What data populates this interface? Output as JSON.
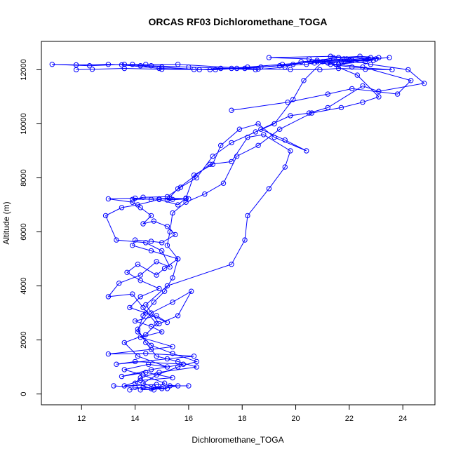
{
  "chart_data": {
    "type": "line",
    "title": "ORCAS RF03 Dichloromethane_TOGA",
    "xlabel": "Dichloromethane_TOGA",
    "ylabel": "Altitude (m)",
    "xlim": [
      10.5,
      25.2
    ],
    "ylim": [
      -400,
      13050
    ],
    "x_ticks": [
      12,
      14,
      16,
      18,
      20,
      22,
      24
    ],
    "y_ticks": [
      0,
      2000,
      4000,
      6000,
      8000,
      10000,
      12000
    ],
    "grid": false,
    "legend": "none",
    "series_color": "#0000ff",
    "series": [
      {
        "points": [
          [
            13.8,
            150
          ],
          [
            14.3,
            250
          ],
          [
            15.0,
            200
          ],
          [
            15.6,
            300
          ],
          [
            14.8,
            350
          ],
          [
            13.6,
            300
          ],
          [
            14.2,
            500
          ],
          [
            15.4,
            600
          ],
          [
            14.4,
            800
          ],
          [
            13.5,
            650
          ],
          [
            14.6,
            900
          ],
          [
            15.8,
            1100
          ],
          [
            14.0,
            1200
          ],
          [
            13.3,
            1100
          ],
          [
            15.2,
            1300
          ],
          [
            16.2,
            1400
          ],
          [
            14.4,
            1500
          ],
          [
            13.0,
            1480
          ],
          [
            14.6,
            1650
          ],
          [
            15.4,
            1750
          ],
          [
            14.2,
            2100
          ],
          [
            15.0,
            2300
          ],
          [
            14.6,
            2500
          ],
          [
            14.0,
            2700
          ],
          [
            14.8,
            2900
          ],
          [
            15.2,
            2650
          ],
          [
            14.4,
            3000
          ],
          [
            13.8,
            3200
          ],
          [
            14.2,
            3600
          ],
          [
            14.9,
            3900
          ],
          [
            14.2,
            4200
          ],
          [
            13.7,
            4500
          ],
          [
            14.1,
            4800
          ],
          [
            14.8,
            4400
          ],
          [
            15.1,
            4650
          ],
          [
            15.6,
            5000
          ],
          [
            14.6,
            5300
          ],
          [
            13.9,
            5500
          ],
          [
            14.0,
            5700
          ],
          [
            14.6,
            5650
          ],
          [
            15.0,
            5600
          ],
          [
            15.5,
            5900
          ],
          [
            15.2,
            6200
          ],
          [
            14.7,
            6400
          ],
          [
            14.3,
            6300
          ],
          [
            14.6,
            6600
          ],
          [
            14.2,
            6900
          ],
          [
            13.9,
            7100
          ],
          [
            13.0,
            7220
          ],
          [
            14.0,
            7250
          ],
          [
            14.6,
            7200
          ],
          [
            15.3,
            7250
          ],
          [
            16.0,
            7220
          ],
          [
            15.2,
            7180
          ],
          [
            15.6,
            7600
          ],
          [
            16.8,
            8500
          ],
          [
            17.6,
            8600
          ],
          [
            18.2,
            9500
          ],
          [
            18.8,
            9600
          ],
          [
            19.8,
            9000
          ],
          [
            19.6,
            8400
          ],
          [
            19.0,
            7600
          ],
          [
            18.2,
            6600
          ],
          [
            18.1,
            5700
          ],
          [
            17.6,
            4800
          ],
          [
            15.2,
            4000
          ],
          [
            14.4,
            3300
          ],
          [
            14.9,
            2600
          ],
          [
            15.6,
            2900
          ],
          [
            16.1,
            3800
          ],
          [
            15.4,
            3400
          ],
          [
            14.6,
            3000
          ],
          [
            14.1,
            2400
          ],
          [
            14.4,
            1900
          ],
          [
            14.8,
            1400
          ],
          [
            15.6,
            1200
          ],
          [
            16.3,
            1000
          ],
          [
            14.9,
            800
          ],
          [
            14.2,
            600
          ],
          [
            14.0,
            400
          ],
          [
            14.6,
            200
          ],
          [
            15.3,
            300
          ],
          [
            16.0,
            300
          ]
        ]
      },
      {
        "points": [
          [
            13.2,
            300
          ],
          [
            14.0,
            250
          ],
          [
            14.7,
            150
          ],
          [
            15.1,
            400
          ],
          [
            14.3,
            700
          ],
          [
            13.6,
            900
          ],
          [
            14.5,
            1100
          ],
          [
            15.2,
            1000
          ],
          [
            14.1,
            1400
          ],
          [
            13.6,
            1900
          ],
          [
            14.4,
            2200
          ],
          [
            14.8,
            2600
          ],
          [
            14.3,
            3200
          ],
          [
            13.9,
            3700
          ],
          [
            13.0,
            3600
          ],
          [
            13.4,
            4100
          ],
          [
            14.2,
            4400
          ],
          [
            14.8,
            4900
          ],
          [
            15.3,
            4700
          ],
          [
            15.0,
            5300
          ],
          [
            14.4,
            5600
          ],
          [
            13.3,
            5700
          ],
          [
            12.9,
            6600
          ],
          [
            13.5,
            6900
          ],
          [
            14.1,
            7000
          ],
          [
            14.9,
            7200
          ],
          [
            15.6,
            7000
          ],
          [
            15.9,
            7250
          ],
          [
            16.2,
            8100
          ],
          [
            16.9,
            8500
          ],
          [
            17.2,
            9200
          ],
          [
            17.9,
            9800
          ],
          [
            18.6,
            10000
          ],
          [
            19.2,
            9500
          ],
          [
            20.4,
            9000
          ],
          [
            19.6,
            9400
          ],
          [
            18.7,
            9800
          ],
          [
            19.8,
            10300
          ],
          [
            20.5,
            10400
          ],
          [
            21.2,
            10600
          ],
          [
            22.5,
            11400
          ],
          [
            23.1,
            11200
          ],
          [
            24.8,
            11500
          ],
          [
            24.2,
            12000
          ],
          [
            22.8,
            12200
          ],
          [
            21.8,
            12400
          ],
          [
            20.2,
            12300
          ],
          [
            19.6,
            12100
          ],
          [
            18.5,
            12000
          ],
          [
            17.2,
            12050
          ],
          [
            16.4,
            12000
          ],
          [
            15.0,
            12100
          ],
          [
            14.2,
            12150
          ],
          [
            13.6,
            12200
          ],
          [
            12.3,
            12150
          ],
          [
            10.9,
            12200
          ],
          [
            11.8,
            12180
          ],
          [
            13.0,
            12200
          ],
          [
            14.6,
            12150
          ],
          [
            16.0,
            12100
          ],
          [
            17.6,
            12050
          ],
          [
            18.7,
            12100
          ],
          [
            19.9,
            12200
          ],
          [
            20.8,
            12350
          ],
          [
            21.6,
            12450
          ],
          [
            22.4,
            12500
          ],
          [
            23.1,
            12450
          ],
          [
            22.6,
            12300
          ],
          [
            21.5,
            12200
          ],
          [
            20.5,
            12400
          ],
          [
            19.0,
            12450
          ],
          [
            21.3,
            12500
          ],
          [
            22.7,
            12400
          ],
          [
            23.5,
            12450
          ],
          [
            22.1,
            12350
          ],
          [
            21.0,
            12300
          ],
          [
            20.3,
            11600
          ],
          [
            19.9,
            10900
          ],
          [
            19.2,
            10000
          ],
          [
            18.5,
            9700
          ],
          [
            17.6,
            9300
          ],
          [
            16.9,
            8800
          ],
          [
            16.3,
            8000
          ],
          [
            15.7,
            7650
          ],
          [
            15.2,
            7300
          ],
          [
            14.3,
            7280
          ],
          [
            13.9,
            7200
          ],
          [
            14.9,
            7220
          ],
          [
            15.4,
            7200
          ],
          [
            15.9,
            7230
          ]
        ]
      },
      {
        "points": [
          [
            11.8,
            12000
          ],
          [
            12.4,
            12020
          ],
          [
            13.6,
            12050
          ],
          [
            15.0,
            12020
          ],
          [
            16.2,
            12010
          ],
          [
            17.0,
            12000
          ],
          [
            17.8,
            12050
          ],
          [
            18.6,
            12030
          ],
          [
            19.8,
            12010
          ],
          [
            20.9,
            12000
          ],
          [
            21.6,
            12050
          ],
          [
            22.6,
            12020
          ],
          [
            23.6,
            12000
          ],
          [
            22.1,
            12100
          ],
          [
            21.3,
            12200
          ],
          [
            20.6,
            12300
          ],
          [
            22.0,
            12350
          ],
          [
            23.0,
            12400
          ],
          [
            21.8,
            12300
          ],
          [
            21.2,
            12250
          ],
          [
            22.3,
            11800
          ],
          [
            23.1,
            11000
          ],
          [
            22.5,
            10800
          ],
          [
            21.7,
            10600
          ],
          [
            20.6,
            10400
          ],
          [
            19.4,
            9800
          ],
          [
            18.6,
            9200
          ],
          [
            17.8,
            8800
          ],
          [
            17.3,
            7800
          ],
          [
            16.6,
            7400
          ],
          [
            15.9,
            7100
          ],
          [
            15.4,
            6700
          ],
          [
            15.3,
            6000
          ],
          [
            15.2,
            5500
          ],
          [
            15.6,
            5000
          ],
          [
            15.4,
            4300
          ],
          [
            15.1,
            3800
          ],
          [
            14.7,
            3400
          ],
          [
            14.3,
            2900
          ],
          [
            14.1,
            2300
          ],
          [
            14.6,
            1800
          ],
          [
            15.4,
            1500
          ],
          [
            16.3,
            1200
          ],
          [
            15.6,
            1000
          ],
          [
            14.8,
            700
          ],
          [
            14.3,
            400
          ],
          [
            14.7,
            250
          ],
          [
            15.2,
            200
          ],
          [
            14.2,
            150
          ]
        ]
      },
      {
        "points": [
          [
            17.6,
            10500
          ],
          [
            19.7,
            10800
          ],
          [
            21.2,
            11100
          ],
          [
            22.1,
            11300
          ],
          [
            23.8,
            11100
          ],
          [
            24.3,
            11600
          ],
          [
            22.5,
            12100
          ],
          [
            21.6,
            12200
          ],
          [
            22.8,
            12450
          ],
          [
            21.4,
            12450
          ],
          [
            20.4,
            12200
          ],
          [
            19.4,
            12150
          ],
          [
            18.1,
            12050
          ],
          [
            15.6,
            12200
          ],
          [
            14.4,
            12200
          ],
          [
            13.9,
            12200
          ],
          [
            13.5,
            12180
          ],
          [
            14.9,
            12050
          ],
          [
            16.8,
            12000
          ],
          [
            18.2,
            12100
          ],
          [
            19.5,
            12200
          ],
          [
            20.8,
            12300
          ],
          [
            21.9,
            12400
          ],
          [
            22.9,
            12350
          ],
          [
            21.7,
            12300
          ],
          [
            20.7,
            12250
          ]
        ]
      }
    ]
  }
}
